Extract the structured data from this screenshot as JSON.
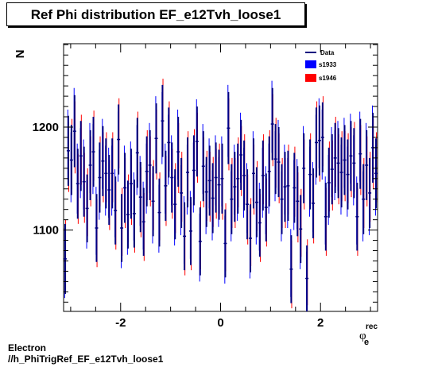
{
  "header": {
    "title": "Ref Phi distribution EF_e12Tvh_loose1"
  },
  "footer": {
    "line1": "Electron",
    "line2": "//h_PhiTrigRef_EF_e12Tvh_loose1"
  },
  "chart_data": {
    "type": "scatter",
    "ylabel": "N",
    "xlabel_main": "φ",
    "xlabel_sup": "rec",
    "xlabel_sub": "e",
    "xlim": [
      -3.1416,
      3.1416
    ],
    "ylim": [
      1021,
      1281
    ],
    "x_ticks": [
      -2,
      0,
      2
    ],
    "x_tick_labels": [
      "-2",
      "0",
      "2"
    ],
    "y_ticks": [
      1100,
      1200
    ],
    "y_tick_labels": [
      "1100",
      "1200"
    ],
    "legend_position": "top-right",
    "colors": {
      "data": "#00007f",
      "s1933": "#0000ff",
      "s1946": "#ff0000"
    },
    "series": [
      {
        "name": "Data",
        "style": "errorbars",
        "values": [
          1072,
          1177,
          1168,
          1196,
          1145,
          1172,
          1147,
          1121,
          1163,
          1176,
          1102,
          1151,
          1167,
          1155,
          1139,
          1155,
          1119,
          1188,
          1102,
          1141,
          1115,
          1145,
          1116,
          1175,
          1132,
          1108,
          1157,
          1163,
          1128,
          1189,
          1117,
          1206,
          1143,
          1185,
          1151,
          1125,
          1176,
          1136,
          1094,
          1156,
          1099,
          1158,
          1186,
          1089,
          1162,
          1137,
          1148,
          1131,
          1151,
          1144,
          1150,
          1087,
          1199,
          1130,
          1142,
          1150,
          1173,
          1153,
          1125,
          1092,
          1155,
          1127,
          1107,
          1153,
          1122,
          1157,
          1203,
          1169,
          1166,
          1130,
          1142,
          1143,
          1062,
          1141,
          1128,
          1101,
          1160,
          1053,
          1154,
          1126,
          1185,
          1187,
          1190,
          1113,
          1146,
          1159,
          1170,
          1165,
          1156,
          1168,
          1154,
          1172,
          1165,
          1113,
          1174,
          1130,
          1163,
          1136,
          1180,
          1155
        ],
        "errors": [
          34,
          34,
          34,
          35,
          34,
          34,
          34,
          33,
          34,
          34,
          33,
          34,
          34,
          34,
          34,
          34,
          33,
          34,
          33,
          34,
          33,
          34,
          33,
          34,
          34,
          33,
          34,
          34,
          34,
          34,
          33,
          35,
          34,
          34,
          34,
          34,
          34,
          34,
          33,
          34,
          33,
          34,
          34,
          33,
          34,
          34,
          34,
          34,
          34,
          34,
          34,
          33,
          35,
          34,
          34,
          34,
          34,
          34,
          34,
          33,
          34,
          34,
          33,
          34,
          33,
          34,
          35,
          34,
          34,
          34,
          34,
          34,
          33,
          34,
          34,
          33,
          34,
          32,
          34,
          34,
          34,
          34,
          34,
          33,
          34,
          34,
          34,
          34,
          34,
          34,
          34,
          34,
          34,
          33,
          34,
          34,
          34,
          34,
          34,
          34
        ]
      },
      {
        "name": "s1933",
        "style": "errorbars",
        "values": [
          1068,
          1183,
          1161,
          1203,
          1150,
          1165,
          1154,
          1115,
          1170,
          1169,
          1109,
          1144,
          1174,
          1148,
          1146,
          1148,
          1126,
          1181,
          1096,
          1148,
          1109,
          1152,
          1123,
          1168,
          1138,
          1114,
          1150,
          1170,
          1121,
          1196,
          1111,
          1199,
          1150,
          1178,
          1158,
          1119,
          1183,
          1129,
          1100,
          1149,
          1105,
          1151,
          1193,
          1083,
          1169,
          1130,
          1155,
          1124,
          1158,
          1137,
          1157,
          1081,
          1206,
          1123,
          1149,
          1143,
          1180,
          1146,
          1131,
          1086,
          1162,
          1120,
          1113,
          1146,
          1129,
          1150,
          1210,
          1162,
          1173,
          1123,
          1149,
          1136,
          1068,
          1134,
          1135,
          1095,
          1167,
          1047,
          1147,
          1132,
          1178,
          1194,
          1183,
          1119,
          1139,
          1166,
          1163,
          1172,
          1149,
          1175,
          1147,
          1179,
          1158,
          1119,
          1181,
          1123,
          1170,
          1129,
          1187,
          1148
        ],
        "errors": [
          34,
          34,
          34,
          35,
          34,
          34,
          34,
          33,
          34,
          34,
          33,
          34,
          34,
          34,
          34,
          34,
          33,
          34,
          33,
          34,
          33,
          34,
          33,
          34,
          34,
          33,
          34,
          34,
          34,
          34,
          33,
          35,
          34,
          34,
          34,
          34,
          34,
          34,
          33,
          34,
          33,
          34,
          34,
          33,
          34,
          34,
          34,
          34,
          34,
          34,
          34,
          33,
          35,
          34,
          34,
          34,
          34,
          34,
          34,
          33,
          34,
          34,
          33,
          34,
          33,
          34,
          35,
          34,
          34,
          34,
          34,
          34,
          33,
          34,
          34,
          33,
          34,
          32,
          34,
          34,
          34,
          34,
          34,
          33,
          34,
          34,
          34,
          34,
          34,
          34,
          34,
          34,
          34,
          33,
          34,
          34,
          34,
          34,
          34,
          34
        ]
      },
      {
        "name": "s1946",
        "style": "errorbars",
        "values": [
          1076,
          1171,
          1174,
          1190,
          1140,
          1178,
          1141,
          1127,
          1157,
          1182,
          1097,
          1157,
          1161,
          1161,
          1134,
          1161,
          1114,
          1194,
          1108,
          1136,
          1121,
          1139,
          1111,
          1181,
          1127,
          1103,
          1163,
          1157,
          1134,
          1183,
          1123,
          1212,
          1138,
          1191,
          1145,
          1131,
          1170,
          1142,
          1089,
          1162,
          1094,
          1164,
          1180,
          1095,
          1156,
          1143,
          1142,
          1137,
          1145,
          1150,
          1144,
          1093,
          1193,
          1136,
          1136,
          1156,
          1167,
          1159,
          1120,
          1098,
          1149,
          1133,
          1102,
          1159,
          1117,
          1163,
          1197,
          1175,
          1160,
          1136,
          1136,
          1149,
          1057,
          1147,
          1122,
          1107,
          1154,
          1059,
          1160,
          1121,
          1191,
          1181,
          1196,
          1108,
          1152,
          1153,
          1176,
          1159,
          1162,
          1162,
          1160,
          1166,
          1171,
          1108,
          1168,
          1136,
          1157,
          1142,
          1174,
          1161
        ],
        "errors": [
          34,
          34,
          34,
          35,
          34,
          34,
          34,
          33,
          34,
          34,
          33,
          34,
          34,
          34,
          34,
          34,
          33,
          34,
          33,
          34,
          33,
          34,
          33,
          34,
          34,
          33,
          34,
          34,
          34,
          34,
          33,
          35,
          34,
          34,
          34,
          34,
          34,
          34,
          33,
          34,
          33,
          34,
          34,
          33,
          34,
          34,
          34,
          34,
          34,
          34,
          34,
          33,
          35,
          34,
          34,
          34,
          34,
          34,
          34,
          33,
          34,
          34,
          33,
          34,
          33,
          34,
          35,
          34,
          34,
          34,
          34,
          34,
          33,
          34,
          34,
          33,
          34,
          32,
          34,
          34,
          34,
          34,
          34,
          33,
          34,
          34,
          34,
          34,
          34,
          34,
          34,
          34,
          34,
          33,
          34,
          34,
          34,
          34,
          34,
          34
        ]
      }
    ]
  }
}
